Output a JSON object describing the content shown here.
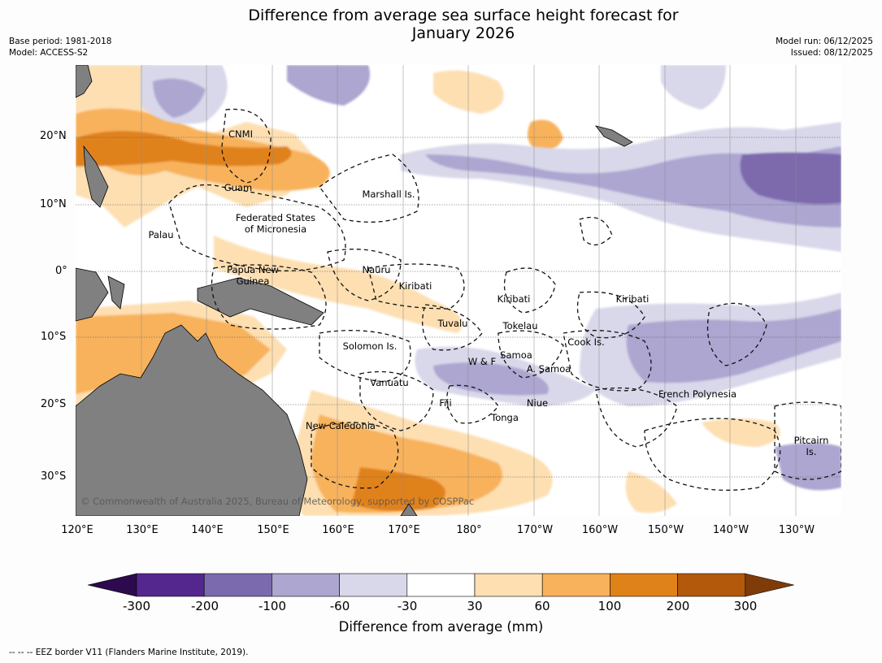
{
  "title_line1": "Difference from average sea surface height forecast for",
  "title_line2": "January 2026",
  "meta_left": [
    "Base period: 1981-2018",
    "Model: ACCESS-S2"
  ],
  "meta_right": [
    "Model run: 06/12/2025",
    "Issued: 08/12/2025"
  ],
  "lat_labels": [
    "20°N",
    "10°N",
    "0°",
    "10°S",
    "20°S",
    "30°S"
  ],
  "lon_labels": [
    "120°E",
    "130°E",
    "140°E",
    "150°E",
    "160°E",
    "170°E",
    "180°",
    "170°W",
    "160°W",
    "150°W",
    "140°W",
    "130°W"
  ],
  "places": [
    "CNMI",
    "Guam",
    "Marshall Is.",
    "Federated States\nof Micronesia",
    "Palau",
    "Papua New\nGuinea",
    "Nauru",
    "Kiribati",
    "Kiribati",
    "Kiribati",
    "Tuvalu",
    "Tokelau",
    "Solomon Is.",
    "Cook Is.",
    "W & F",
    "Samoa",
    "A. Samoa",
    "Vanuatu",
    "Fiji",
    "Niue",
    "French Polynesia",
    "Tonga",
    "New Caledonia",
    "Pitcairn\nIs."
  ],
  "copyright": "© Commonwealth of Australia 2025, Bureau of Meteorology, supported by COSPPac",
  "colorbar": {
    "ticks": [
      "-300",
      "-200",
      "-100",
      "-60",
      "-30",
      "30",
      "60",
      "100",
      "200",
      "300"
    ],
    "colors": [
      "#2d0a4e",
      "#54278f",
      "#7b6aad",
      "#ada6d1",
      "#d8d8ea",
      "#ffffff",
      "#fddfb2",
      "#f8b25c",
      "#e0821a",
      "#b2590c",
      "#7f3b08"
    ],
    "label": "Difference from average (mm)"
  },
  "footnote": "--  --  -- EEZ border V11 (Flanders Marine Institute, 2019).",
  "colors": {
    "land": "#808080",
    "grid": "#555555",
    "eez": "#111111"
  }
}
